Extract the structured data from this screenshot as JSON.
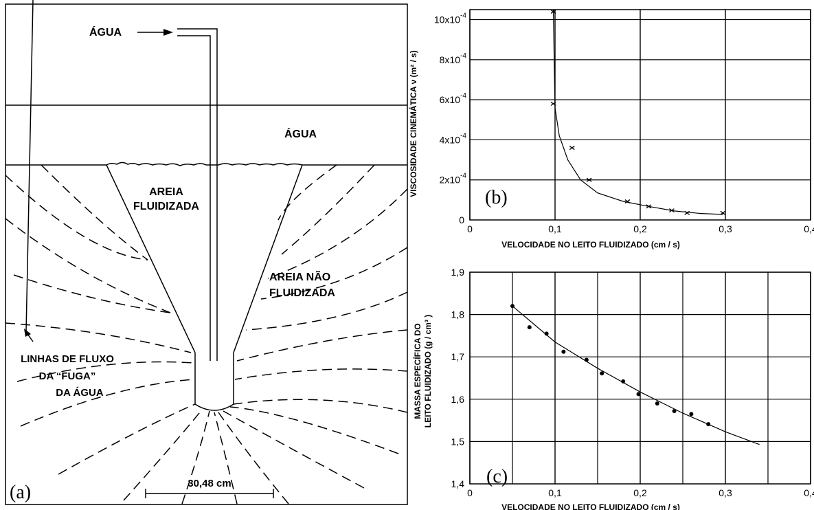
{
  "panel_a": {
    "panel_label": "(a)",
    "water_inlet_label": "ÁGUA",
    "water_layer_label": "ÁGUA",
    "fluidized_sand_label": [
      "AREIA",
      "FLUIDIZADA"
    ],
    "non_fluidized_sand_label": [
      "AREIA NÃO",
      "FLUIDIZADA"
    ],
    "flow_lines_label": [
      "LINHAS DE FLUXO",
      "DA “FUGA”",
      "DA ÁGUA"
    ],
    "scale_label": "30,48 cm"
  },
  "chart_data": [
    {
      "type": "scatter",
      "panel_label": "(b)",
      "ylabel": "VISCOSIDADE CINEMÁTICA ν (m² / s)",
      "xlabel": "VELOCIDADE NO LEITO FLUIDIZADO  (cm / s)",
      "xlim": [
        0,
        0.4
      ],
      "ylim": [
        0,
        0.00105
      ],
      "x_ticks": [
        0,
        0.1,
        0.2,
        0.3,
        0.4
      ],
      "x_tick_labels": [
        "0",
        "0,1",
        "0,2",
        "0,3",
        "0,4"
      ],
      "y_ticks": [
        0,
        0.0002,
        0.0004,
        0.0006,
        0.0008,
        0.001
      ],
      "y_tick_labels": [
        "0",
        "2x10",
        "4x10",
        "6x10",
        "8x10",
        "10x10"
      ],
      "y_tick_exponent": "-4",
      "grid": true,
      "marker": "x",
      "points": [
        {
          "x": 0.098,
          "y": 0.00104
        },
        {
          "x": 0.098,
          "y": 0.00058
        },
        {
          "x": 0.12,
          "y": 0.00036
        },
        {
          "x": 0.14,
          "y": 0.0002
        },
        {
          "x": 0.185,
          "y": 9.25e-05
        },
        {
          "x": 0.21,
          "y": 6.75e-05
        },
        {
          "x": 0.237,
          "y": 4.75e-05
        },
        {
          "x": 0.255,
          "y": 3.5e-05
        },
        {
          "x": 0.297,
          "y": 3.5e-05
        }
      ],
      "fit_curve": [
        {
          "x": 0.098,
          "y": 0.00105
        },
        {
          "x": 0.1,
          "y": 0.00056
        },
        {
          "x": 0.105,
          "y": 0.00042
        },
        {
          "x": 0.115,
          "y": 0.0003
        },
        {
          "x": 0.13,
          "y": 0.0002
        },
        {
          "x": 0.15,
          "y": 0.000135
        },
        {
          "x": 0.18,
          "y": 9.25e-05
        },
        {
          "x": 0.21,
          "y": 6.75e-05
        },
        {
          "x": 0.24,
          "y": 4.5e-05
        },
        {
          "x": 0.27,
          "y": 3.25e-05
        },
        {
          "x": 0.297,
          "y": 2.75e-05
        }
      ]
    },
    {
      "type": "scatter",
      "panel_label": "(c)",
      "ylabel_lines": [
        "MASSA ESPECÍFICA DO",
        "LEITO FLUIDIZADO  (g / cm³ )"
      ],
      "xlabel": "VELOCIDADE NO LEITO FLUIDIZADO  (cm / s)",
      "xlim": [
        0,
        0.4
      ],
      "ylim": [
        1.4,
        1.9
      ],
      "x_ticks": [
        0,
        0.1,
        0.2,
        0.3,
        0.4
      ],
      "x_tick_labels": [
        "0",
        "0,1",
        "0,2",
        "0,3",
        "0,4"
      ],
      "y_ticks": [
        1.4,
        1.5,
        1.6,
        1.7,
        1.8,
        1.9
      ],
      "y_tick_labels": [
        "1,4",
        "1,5",
        "1,6",
        "1,7",
        "1,8",
        "1,9"
      ],
      "grid": true,
      "marker": "dot",
      "points": [
        {
          "x": 0.05,
          "y": 1.82
        },
        {
          "x": 0.07,
          "y": 1.77
        },
        {
          "x": 0.09,
          "y": 1.755
        },
        {
          "x": 0.11,
          "y": 1.712
        },
        {
          "x": 0.137,
          "y": 1.693
        },
        {
          "x": 0.155,
          "y": 1.661
        },
        {
          "x": 0.18,
          "y": 1.642
        },
        {
          "x": 0.198,
          "y": 1.612
        },
        {
          "x": 0.22,
          "y": 1.59
        },
        {
          "x": 0.24,
          "y": 1.572
        },
        {
          "x": 0.26,
          "y": 1.565
        },
        {
          "x": 0.28,
          "y": 1.541
        }
      ],
      "fit_curve": [
        {
          "x": 0.05,
          "y": 1.82
        },
        {
          "x": 0.1,
          "y": 1.735
        },
        {
          "x": 0.15,
          "y": 1.673
        },
        {
          "x": 0.2,
          "y": 1.617
        },
        {
          "x": 0.25,
          "y": 1.567
        },
        {
          "x": 0.3,
          "y": 1.523
        },
        {
          "x": 0.34,
          "y": 1.493
        }
      ]
    }
  ]
}
